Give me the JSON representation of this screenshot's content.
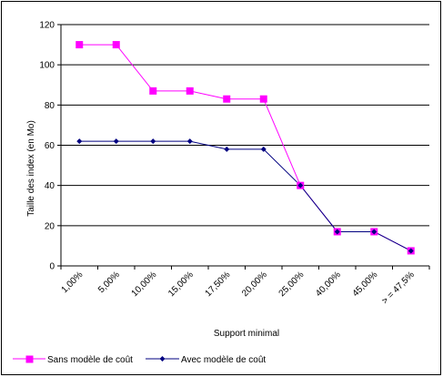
{
  "chart_data": {
    "type": "line",
    "title": "",
    "xlabel": "Support minimal",
    "ylabel": "Taille des index (en Mo)",
    "categories": [
      "1,00%",
      "5,00%",
      "10,00%",
      "15,00%",
      "17,50%",
      "20,00%",
      "25,00%",
      "40,00%",
      "45,00%",
      "> = 47,5%"
    ],
    "ylim": [
      0,
      120
    ],
    "yticks": [
      0,
      20,
      40,
      60,
      80,
      100,
      120
    ],
    "grid": true,
    "legend_position": "bottom-left",
    "series": [
      {
        "name": "Sans modèle de coût",
        "color": "#ff00ff",
        "marker": "square",
        "values": [
          110,
          110,
          87,
          87,
          83,
          83,
          40,
          17,
          17,
          7.5
        ]
      },
      {
        "name": "Avec modèle de coût",
        "color": "#000080",
        "marker": "diamond",
        "values": [
          62,
          62,
          62,
          62,
          58,
          58,
          40,
          17,
          17,
          7.5
        ]
      }
    ]
  }
}
